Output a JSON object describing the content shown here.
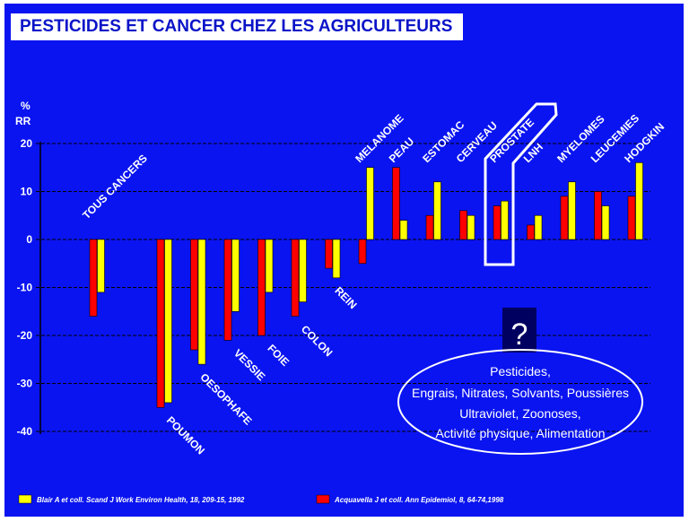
{
  "title": "PESTICIDES ET CANCER CHEZ LES AGRICULTEURS",
  "chart_data": {
    "type": "bar",
    "ylabel": [
      "%",
      "RR"
    ],
    "ylim": [
      -40,
      20
    ],
    "yticks": [
      20,
      10,
      0,
      -10,
      -20,
      -30,
      -40
    ],
    "grid": true,
    "categories": [
      "TOUS CANCERS",
      "",
      "POUMON",
      "OESOPHAFE",
      "VESSIE",
      "FOIE",
      "COLON",
      "REIN",
      "MELANOME",
      "PEAU",
      "ESTOMAC",
      "CERVEAU",
      "PROSTATE",
      "LNH",
      "MYELOMES",
      "LEUCEMIES",
      "HODGKIN"
    ],
    "series": [
      {
        "name": "Acquavella J et coll. Ann Epidemiol, 8, 64-74,1998",
        "color": "#ff0000",
        "values": [
          -16,
          null,
          -35,
          -23,
          -21,
          -20,
          -16,
          -6,
          -5,
          15,
          5,
          6,
          7,
          3,
          9,
          10,
          9
        ]
      },
      {
        "name": "Blair A et coll. Scand J Work Environ Health, 18, 209-15, 1992",
        "color": "#ffff00",
        "values": [
          -11,
          null,
          -34,
          -26,
          -15,
          -11,
          -13,
          -8,
          15,
          4,
          12,
          5,
          8,
          5,
          12,
          7,
          16
        ]
      }
    ],
    "highlight": "PROSTATE",
    "legend_position": "bottom"
  },
  "annotation": {
    "question": "?",
    "lines": [
      "Pesticides,",
      "Engrais, Nitrates, Solvants, Poussières",
      "Ultraviolet, Zoonoses,",
      "Activité physique, Alimentation"
    ]
  }
}
